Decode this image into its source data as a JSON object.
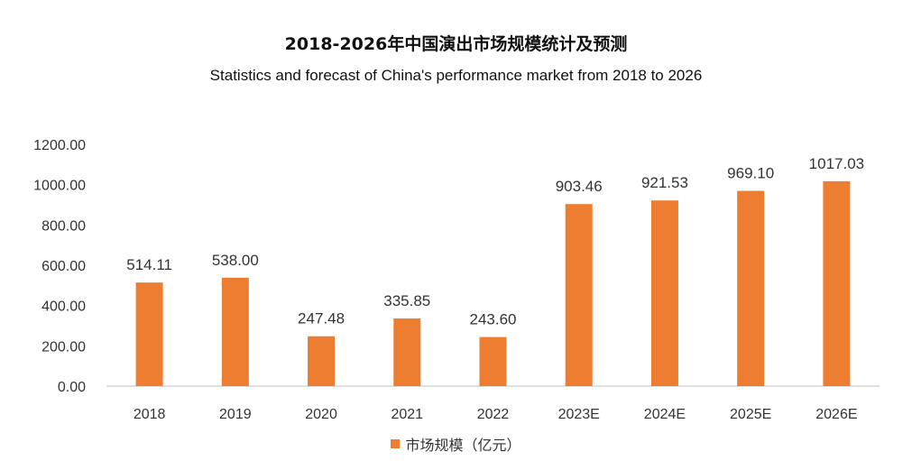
{
  "chart_data": {
    "type": "bar",
    "title": "2018-2026年中国演出市场规模统计及预测",
    "subtitle": "Statistics and forecast of China's performance market from 2018 to 2026",
    "categories": [
      "2018",
      "2019",
      "2020",
      "2021",
      "2022",
      "2023E",
      "2024E",
      "2025E",
      "2026E"
    ],
    "series": [
      {
        "name": "市场规模（亿元）",
        "values": [
          514.11,
          538.0,
          247.48,
          335.85,
          243.6,
          903.46,
          921.53,
          969.1,
          1017.03
        ],
        "labels": [
          "514.11",
          "538.00",
          "247.48",
          "335.85",
          "243.60",
          "903.46",
          "921.53",
          "969.10",
          "1017.03"
        ]
      }
    ],
    "yticks": [
      "0.00",
      "200.00",
      "400.00",
      "600.00",
      "800.00",
      "1000.00",
      "1200.00"
    ],
    "ylim": [
      0,
      1200
    ],
    "xlabel": "",
    "ylabel": "",
    "grid": false,
    "legend_position": "bottom-center",
    "bar_color": "#ED7D31"
  }
}
